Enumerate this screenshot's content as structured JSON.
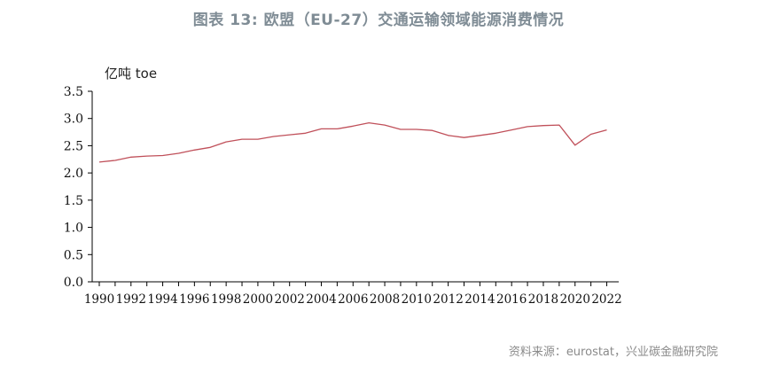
{
  "title": "图表 13: 欧盟（EU-27）交通运输领域能源消费情况",
  "unit_label": "亿吨 toe",
  "source": "资料来源：eurostat，兴业碳金融研究院",
  "colors": {
    "line": "#c0505a",
    "axis": "#000000",
    "title": "#7f8c95"
  },
  "chart_data": {
    "type": "line",
    "title": "图表 13: 欧盟（EU-27）交通运输领域能源消费情况",
    "ylabel": "亿吨 toe",
    "xlabel": "",
    "ylim": [
      0.0,
      3.5
    ],
    "yticks": [
      "0.0",
      "0.5",
      "1.0",
      "1.5",
      "2.0",
      "2.5",
      "3.0",
      "3.5"
    ],
    "xticks": [
      "1990",
      "1992",
      "1994",
      "1996",
      "1998",
      "2000",
      "2002",
      "2004",
      "2006",
      "2008",
      "2010",
      "2012",
      "2014",
      "2016",
      "2018",
      "2020",
      "2022"
    ],
    "grid": false,
    "legend": "none",
    "x": [
      1990,
      1991,
      1992,
      1993,
      1994,
      1995,
      1996,
      1997,
      1998,
      1999,
      2000,
      2001,
      2002,
      2003,
      2004,
      2005,
      2006,
      2007,
      2008,
      2009,
      2010,
      2011,
      2012,
      2013,
      2014,
      2015,
      2016,
      2017,
      2018,
      2019,
      2020,
      2021,
      2022
    ],
    "series": [
      {
        "values": [
          2.2,
          2.23,
          2.29,
          2.31,
          2.32,
          2.36,
          2.42,
          2.47,
          2.57,
          2.62,
          2.62,
          2.67,
          2.7,
          2.73,
          2.81,
          2.81,
          2.86,
          2.92,
          2.88,
          2.8,
          2.8,
          2.78,
          2.69,
          2.65,
          2.69,
          2.73,
          2.79,
          2.85,
          2.87,
          2.88,
          2.51,
          2.71,
          2.79
        ]
      }
    ]
  }
}
